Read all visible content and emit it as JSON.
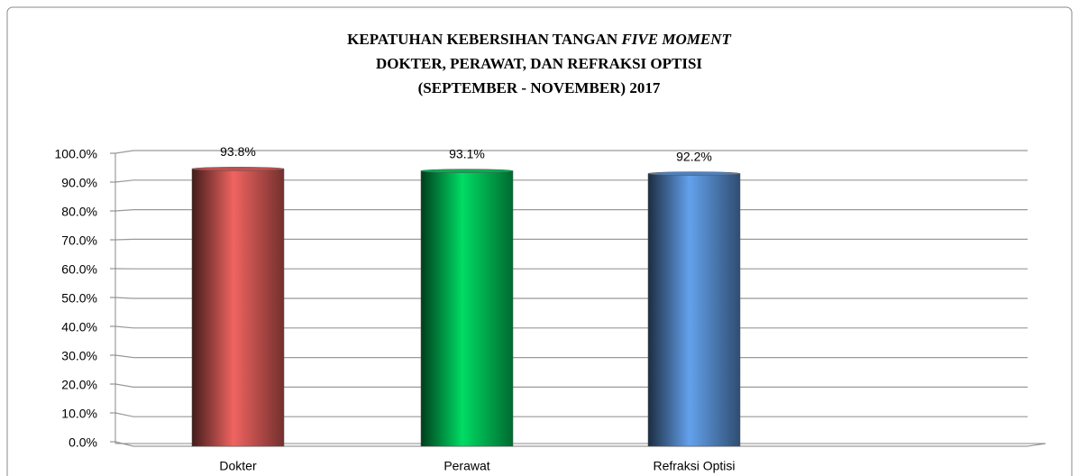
{
  "chart_data": {
    "type": "bar",
    "title": [
      "KEPATUHAN  KEBERSIHAN TANGAN",
      "DOKTER, PERAWAT, DAN REFRAKSI OPTISI",
      "(SEPTEMBER - NOVEMBER) 2017"
    ],
    "title_italic": "FIVE MOMENT",
    "categories": [
      "Dokter",
      "Perawat",
      "Refraksi Optisi"
    ],
    "values": [
      93.8,
      93.1,
      92.2
    ],
    "value_labels": [
      "93.8%",
      "93.1%",
      "92.2%"
    ],
    "colors": [
      "#c0504d",
      "#00b050",
      "#4f81bd"
    ],
    "ylim": [
      0,
      100
    ],
    "yticks": [
      {
        "value": 0,
        "label": "0.0%"
      },
      {
        "value": 10,
        "label": "10.0%"
      },
      {
        "value": 20,
        "label": "20.0%"
      },
      {
        "value": 30,
        "label": "30.0%"
      },
      {
        "value": 40,
        "label": "40.0%"
      },
      {
        "value": 50,
        "label": "50.0%"
      },
      {
        "value": 60,
        "label": "60.0%"
      },
      {
        "value": 70,
        "label": "70.0%"
      },
      {
        "value": 80,
        "label": "80.0%"
      },
      {
        "value": 90,
        "label": "90.0%"
      },
      {
        "value": 100,
        "label": "100.0%"
      }
    ],
    "grid": true
  }
}
